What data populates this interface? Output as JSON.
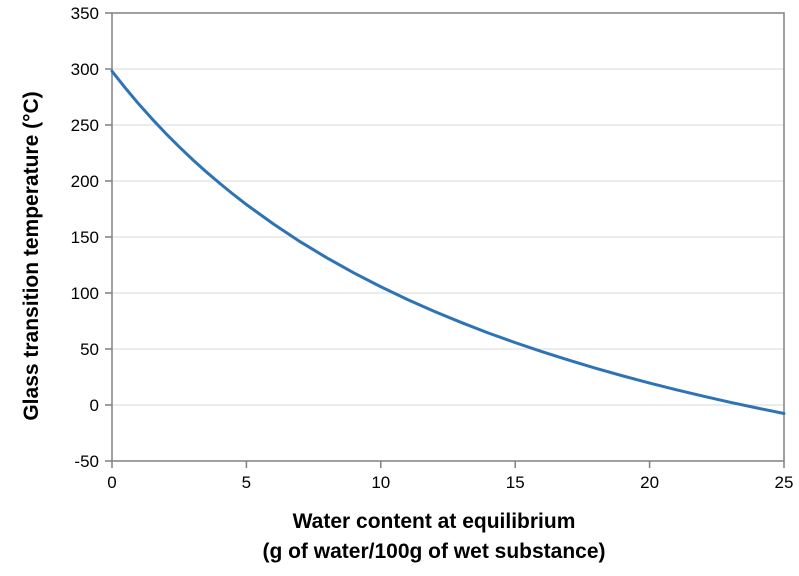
{
  "figure": {
    "background": "#FFFFFF"
  },
  "chart_data": {
    "type": "line",
    "title": "",
    "ylabel": "Glass transition temperature (°C)",
    "xlabel_lines": [
      "Water content at equilibrium",
      "(g of water/100g of wet substance)"
    ],
    "xlim": [
      0,
      25
    ],
    "ylim": [
      -50,
      350
    ],
    "x_ticks": [
      0,
      5,
      10,
      15,
      20,
      25
    ],
    "y_ticks": [
      -50,
      0,
      50,
      100,
      150,
      200,
      250,
      300,
      350
    ],
    "grid": {
      "horizontal": true,
      "vertical": false,
      "color": "#D9D9D9"
    },
    "legend_position": "none",
    "axis_color": "#808080",
    "text_color": "#000000",
    "series": [
      {
        "name": "Glass transition temperature",
        "color": "#2E74B5",
        "line_width": 3,
        "points": [
          [
            0,
            298.0
          ],
          [
            0.5,
            282.9
          ],
          [
            1,
            268.6
          ],
          [
            1.5,
            255.2
          ],
          [
            2,
            242.5
          ],
          [
            2.5,
            230.5
          ],
          [
            3,
            219.1
          ],
          [
            3.5,
            208.3
          ],
          [
            4,
            198.1
          ],
          [
            4.5,
            188.3
          ],
          [
            5,
            179.0
          ],
          [
            6,
            161.7
          ],
          [
            7,
            145.8
          ],
          [
            8,
            131.3
          ],
          [
            9,
            117.9
          ],
          [
            10,
            105.6
          ],
          [
            11,
            94.1
          ],
          [
            12,
            83.5
          ],
          [
            13,
            73.6
          ],
          [
            14,
            64.3
          ],
          [
            15,
            55.7
          ],
          [
            16,
            47.6
          ],
          [
            17,
            40.0
          ],
          [
            18,
            32.8
          ],
          [
            19,
            26.0
          ],
          [
            20,
            19.6
          ],
          [
            21,
            13.6
          ],
          [
            22,
            7.9
          ],
          [
            23,
            2.4
          ],
          [
            24,
            -2.7
          ],
          [
            25,
            -7.6
          ]
        ]
      }
    ]
  }
}
